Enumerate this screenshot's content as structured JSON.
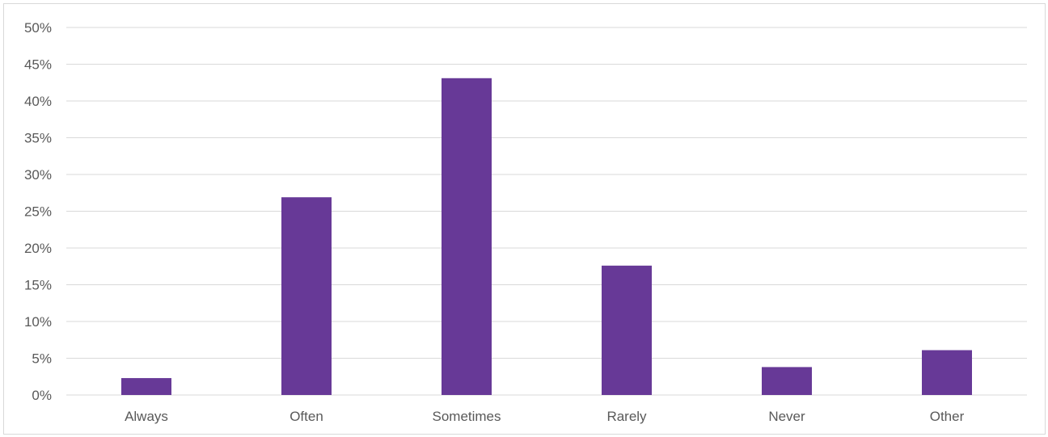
{
  "chart_data": {
    "type": "bar",
    "categories": [
      "Always",
      "Often",
      "Sometimes",
      "Rarely",
      "Never",
      "Other"
    ],
    "values": [
      2.3,
      26.9,
      43.1,
      17.6,
      3.8,
      6.1
    ],
    "y_tick_labels": [
      "0%",
      "5%",
      "10%",
      "15%",
      "20%",
      "25%",
      "30%",
      "35%",
      "40%",
      "45%",
      "50%"
    ],
    "ylim": [
      0,
      50
    ],
    "y_unit": "%",
    "grid": true,
    "legend": "none",
    "bar_color": "#673997",
    "grid_color": "#d9d9d9",
    "label_color": "#595959"
  }
}
